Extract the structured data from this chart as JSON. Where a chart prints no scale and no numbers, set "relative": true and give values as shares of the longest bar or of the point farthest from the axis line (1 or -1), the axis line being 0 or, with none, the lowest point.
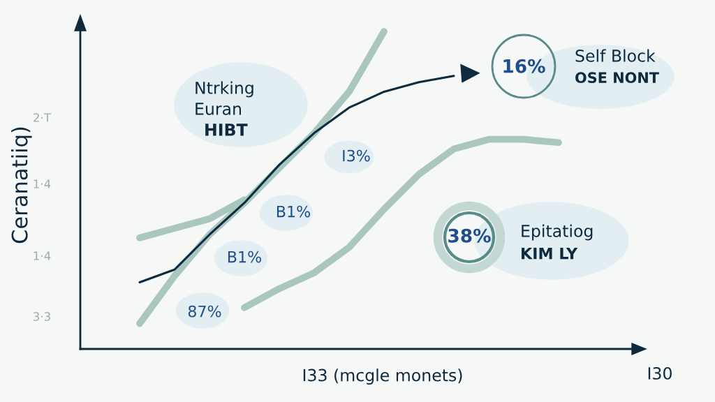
{
  "chart_data": {
    "type": "line",
    "relative": true,
    "ylabel": "Ceranatiiq)",
    "xlabel": "I33 (mcgle monets)",
    "categories": [
      null,
      null,
      null,
      null,
      null,
      null,
      null,
      null,
      null,
      null,
      null,
      null,
      null
    ],
    "series": [
      {
        "color": "#0d2a3f",
        "values": [
          0.21,
          0.25,
          0.36,
          0.46,
          0.58,
          0.68,
          0.76,
          0.81,
          0.84,
          0.86,
          null,
          null,
          null
        ]
      },
      {
        "color": "#a9c7bf",
        "values": [
          0.08,
          0.23,
          0.36,
          0.46,
          0.57,
          0.68,
          0.81,
          1,
          null,
          null,
          null,
          null,
          null
        ]
      },
      {
        "color": "#a9c7bf",
        "values": [
          0.35,
          0.38,
          0.41,
          0.47,
          null,
          null,
          null,
          null,
          null,
          null,
          null,
          null,
          null
        ]
      },
      {
        "color": "#a9c7bf",
        "values": [
          null,
          null,
          null,
          0.13,
          0.19,
          0.24,
          0.32,
          0.44,
          0.55,
          0.63,
          0.66,
          0.66,
          0.65
        ]
      }
    ],
    "annotations": [
      "2·T",
      "1·4",
      "1·4",
      "3·3",
      "I30",
      "Ntrking",
      "Euran",
      "HIBT",
      "I3%",
      "B1%",
      "B1%",
      "87%",
      "16%",
      "Self Block",
      "OSE NONT",
      "38%",
      "Epitatiog",
      "KIM LY"
    ],
    "grid": false,
    "legend": false
  }
}
